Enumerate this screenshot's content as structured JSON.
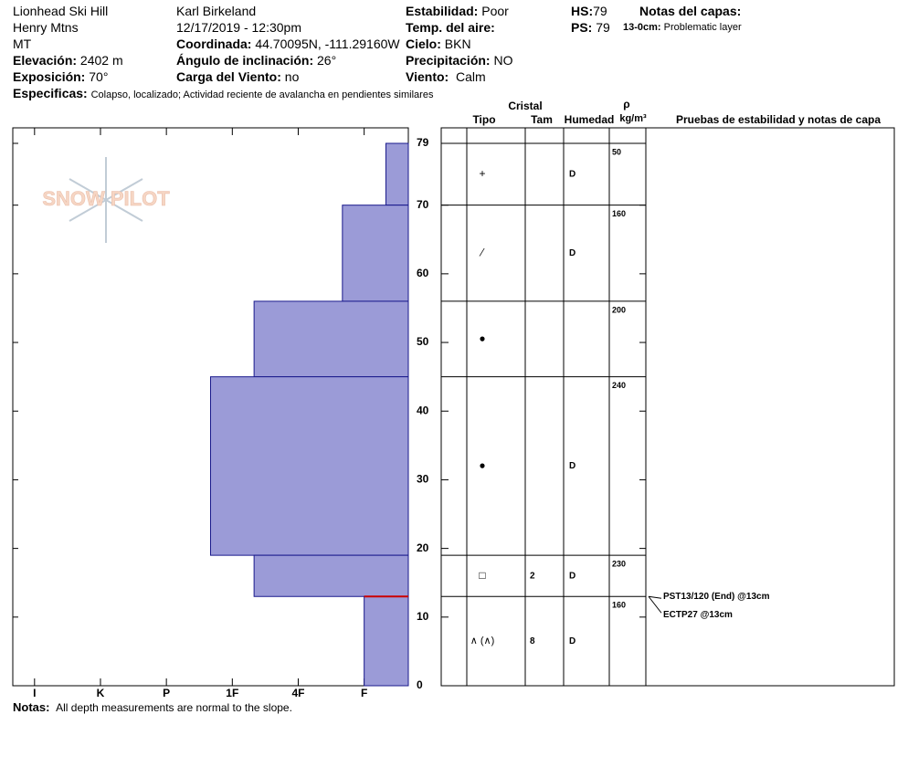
{
  "header": {
    "site": "Lionhead Ski Hill",
    "range": "Henry Mtns",
    "state": "MT",
    "observer": "Karl Birkeland",
    "datetime": "12/17/2019 - 12:30pm",
    "elevation": {
      "label": "Elevación:",
      "value": "2402 m"
    },
    "aspect": {
      "label": "Exposición:",
      "value": "70°"
    },
    "specifics": {
      "label": "Especificas:",
      "value": "Colapso, localizado;  Actividad reciente de avalancha en pendientes similares"
    },
    "coordinates": {
      "label": "Coordinada:",
      "value": "44.70095N, -111.29160W"
    },
    "slope": {
      "label": "Ángulo de inclinación:",
      "value": "26°"
    },
    "wind_load": {
      "label": "Carga del Viento:",
      "value": "no"
    },
    "stability": {
      "label": "Estabilidad:",
      "value": "Poor"
    },
    "air_temp": {
      "label": "Temp. del aire:"
    },
    "sky": {
      "label": "Cielo:",
      "value": "BKN"
    },
    "precipitation": {
      "label": "Precipitación:",
      "value": "NO"
    },
    "wind": {
      "label": "Viento:",
      "value": "Calm"
    },
    "hs": {
      "label": "HS:",
      "value": "79"
    },
    "ps": {
      "label": "PS:",
      "value": "79"
    },
    "layer_notes_title": "Notas del capas:",
    "layer_note": {
      "label": "13-0cm:",
      "value": "Problematic layer"
    }
  },
  "logo": "SNOW PILOT",
  "chart_data": {
    "type": "profile",
    "ylim": [
      0,
      79
    ],
    "yticks": [
      0,
      10,
      20,
      30,
      40,
      50,
      60,
      70,
      79
    ],
    "xlim": [
      6.33,
      0.33
    ],
    "xticks": [
      {
        "value": 6,
        "label": "I"
      },
      {
        "value": 5,
        "label": "K"
      },
      {
        "value": 4,
        "label": "P"
      },
      {
        "value": 3,
        "label": "1F"
      },
      {
        "value": 2,
        "label": "4F"
      },
      {
        "value": 1,
        "label": "F"
      }
    ],
    "color": "#9b9bd7",
    "layers": [
      {
        "top": 79,
        "bottom": 70,
        "hardness": 0.67,
        "grain": "+",
        "moisture": "D",
        "density": 50
      },
      {
        "top": 70,
        "bottom": 56,
        "hardness": 1.33,
        "grain": "⁄",
        "moisture": "D",
        "density": 160
      },
      {
        "top": 56,
        "bottom": 45,
        "hardness": 2.67,
        "grain": "●",
        "density": 200
      },
      {
        "top": 45,
        "bottom": 19,
        "hardness": 3.33,
        "grain": "●",
        "moisture": "D",
        "density": 240
      },
      {
        "top": 19,
        "bottom": 13,
        "hardness": 2.67,
        "grain": "□",
        "size": "2",
        "moisture": "D",
        "density": 230
      },
      {
        "top": 13,
        "bottom": 0,
        "hardness": 1,
        "grain": "∧ (∧)",
        "size": "8",
        "moisture": "D",
        "density": 160
      }
    ],
    "table_headers": {
      "crystal": "Cristal",
      "type": "Tipo",
      "size": "Tam",
      "moisture": "Humedad",
      "rho": "ρ",
      "density_unit": "kg/m³",
      "tests": "Pruebas de estabilidad y notas de capa"
    },
    "tests": [
      {
        "text": "PST13/120 (End) @13cm",
        "depth": 13
      },
      {
        "text": "ECTP27 @13cm",
        "depth": 13
      }
    ]
  },
  "notes": {
    "label": "Notas:",
    "value": "All depth measurements are normal to the slope."
  }
}
